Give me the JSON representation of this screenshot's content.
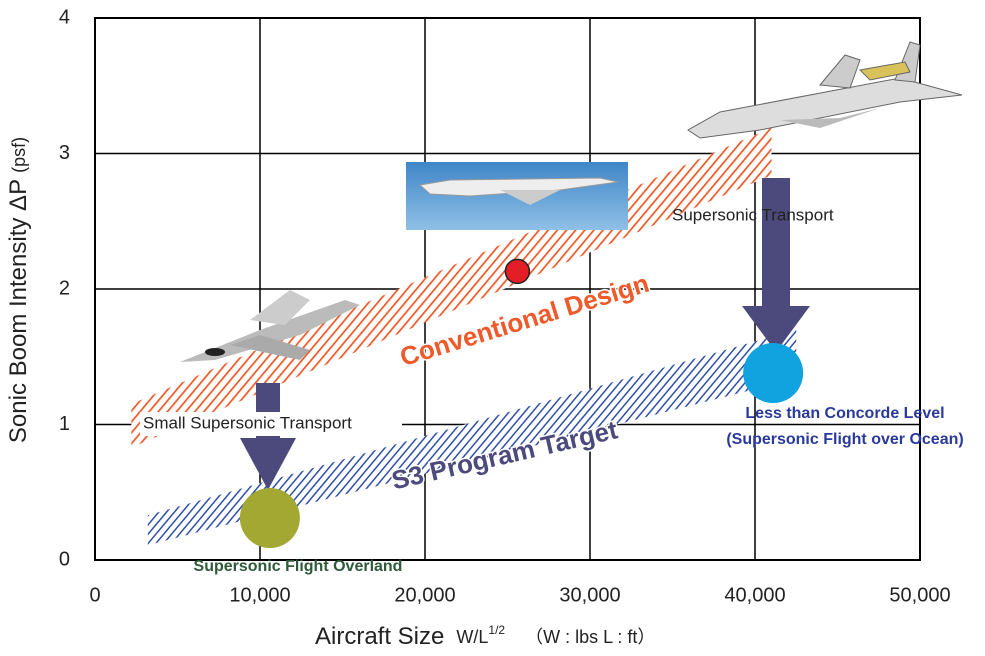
{
  "chart_data": {
    "type": "scatter",
    "y_label": "Sonic Boom Intensity  ΔP",
    "y_label_unit": "(psf)",
    "x_label": "Aircraft Size",
    "x_label_formula": "W/L",
    "x_label_exponent": "1/2",
    "x_label_units": "（W : lbs   L : ft）",
    "xlim": [
      0,
      50000
    ],
    "ylim": [
      0,
      4
    ],
    "xticks": [
      0,
      {
        "value": 10000,
        "label": "10,000"
      },
      {
        "value": 20000,
        "label": "20,000"
      },
      {
        "value": 30000,
        "label": "30,000"
      },
      {
        "value": 40000,
        "label": "40,000"
      },
      {
        "value": 50000,
        "label": "50,000"
      }
    ],
    "yticks": [
      0,
      1,
      2,
      3,
      4
    ],
    "grid": true,
    "points": [
      {
        "x": 25600,
        "y": 2.13,
        "color": "#e41e26"
      },
      {
        "x": 41100,
        "y": 1.38,
        "color": "#11a3e0"
      },
      {
        "x": 10600,
        "y": 0.31,
        "color": "#a3a832"
      }
    ],
    "bands": [
      {
        "name": "Conventional Design",
        "color": "#ee5a2a",
        "x": [
          2200,
          41000
        ],
        "lower": [
          0.83,
          2.84
        ],
        "upper": [
          1.15,
          3.19
        ]
      },
      {
        "name": "S3 Program Target",
        "color": "#2f4fa8",
        "x": [
          3200,
          42500
        ],
        "lower": [
          0.11,
          1.34
        ],
        "upper": [
          0.33,
          1.7
        ]
      }
    ],
    "annotations": [
      "Small Supersonic Transport",
      "Supersonic Transport",
      "Less than Concorde Level",
      "(Supersonic Flight over Ocean)",
      "Supersonic Flight Overland"
    ]
  }
}
